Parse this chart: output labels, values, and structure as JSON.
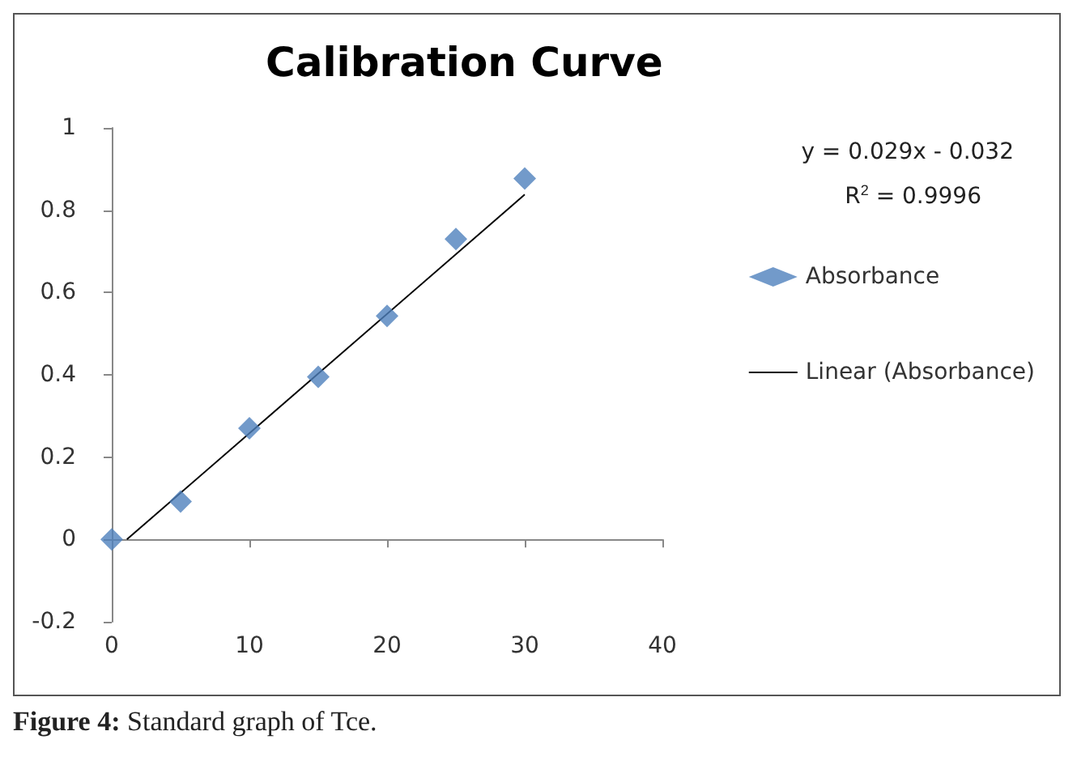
{
  "chart_data": {
    "type": "scatter",
    "title": "Calibration Curve",
    "x": [
      0,
      5,
      10,
      15,
      20,
      25,
      30
    ],
    "series": [
      {
        "name": "Absorbance",
        "color": "#4f81bd",
        "marker": "diamond",
        "values": [
          0,
          0.092,
          0.27,
          0.395,
          0.543,
          0.73,
          0.877
        ]
      },
      {
        "name": "Linear (Absorbance)",
        "type": "line",
        "color": "#000000",
        "marker": "none",
        "x": [
          1.1,
          30
        ],
        "values": [
          0,
          0.838
        ]
      }
    ],
    "xlim": [
      0,
      40
    ],
    "xticks": [
      0,
      10,
      20,
      30,
      40
    ],
    "ylim": [
      -0.2,
      1
    ],
    "yticks": [
      -0.2,
      0,
      0.2,
      0.4,
      0.6,
      0.8,
      1
    ],
    "legend": "right",
    "annotations": [
      "y = 0.029x - 0.032",
      "R$^{2}$ = 0.9996",
      "Figure 4: Standard graph of Tce."
    ]
  }
}
